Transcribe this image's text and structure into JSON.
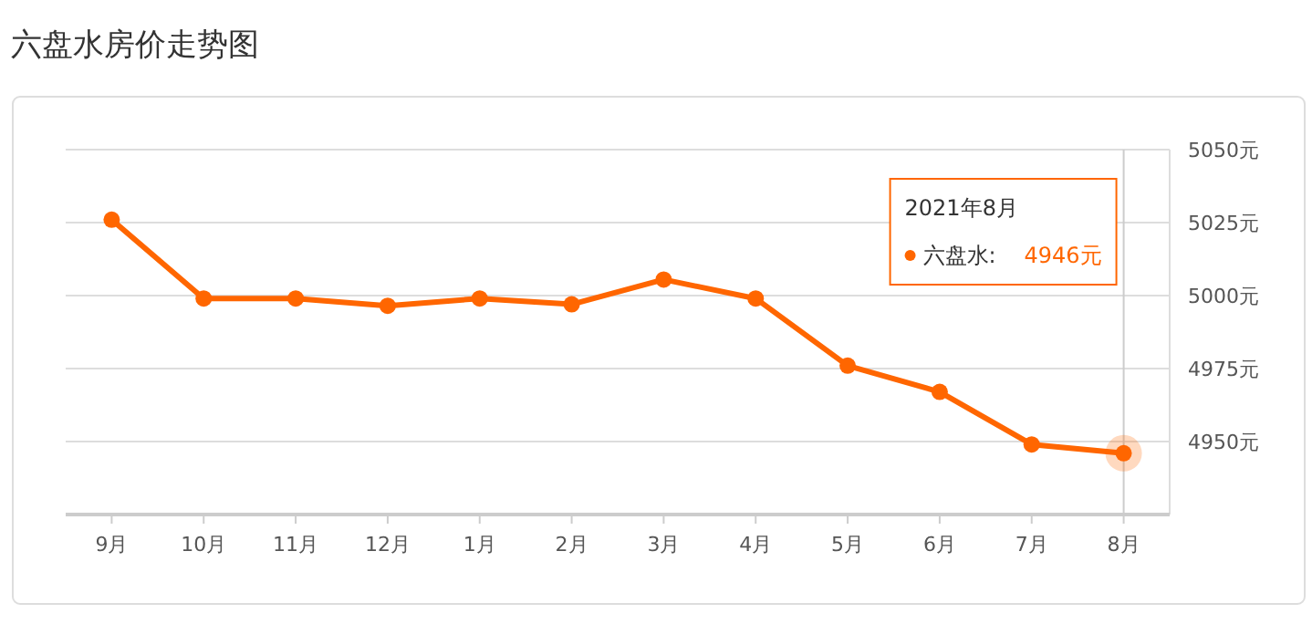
{
  "chart_data": {
    "type": "line",
    "title": "六盘水房价走势图",
    "categories": [
      "9月",
      "10月",
      "11月",
      "12月",
      "1月",
      "2月",
      "3月",
      "4月",
      "5月",
      "6月",
      "7月",
      "8月"
    ],
    "series": [
      {
        "name": "六盘水",
        "color": "#ff6600",
        "values": [
          5026,
          4999,
          4999,
          4996.5,
          4999,
          4997,
          5005.5,
          4999,
          4976,
          4967,
          4949,
          4946
        ]
      }
    ],
    "ylim": [
      4925,
      5050
    ],
    "yticks": [
      {
        "value": 4950,
        "label": "4950元"
      },
      {
        "value": 4975,
        "label": "4975元"
      },
      {
        "value": 5000,
        "label": "5000元"
      },
      {
        "value": 5025,
        "label": "5025元"
      },
      {
        "value": 5050,
        "label": "5050元"
      }
    ],
    "grid": "y",
    "legend": "top right",
    "marker": "circle",
    "line_style": "solid",
    "ref_lines": [
      {
        "axis": "x",
        "value": "8月",
        "color": "#cccccc"
      }
    ],
    "annotations": [
      "2021年8月",
      ":",
      "4946元"
    ]
  }
}
